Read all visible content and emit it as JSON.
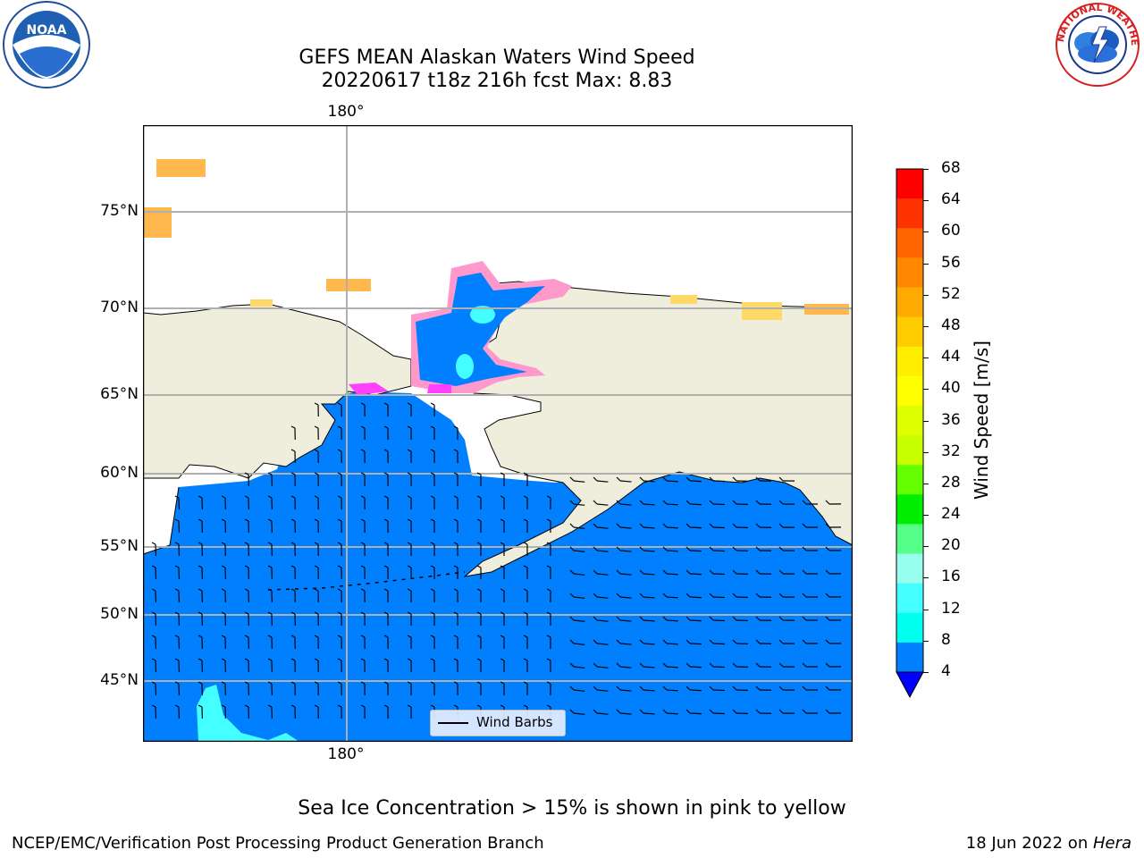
{
  "header": {
    "title_line1": "GEFS MEAN Alaskan Waters Wind Speed",
    "title_line2": "20220617 t18z 216h fcst   Max: 8.83",
    "noaa_logo_text": "NOAA",
    "nws_logo_text": "NATIONAL WEATHER SERVICE"
  },
  "map": {
    "lon_label_top": "180°",
    "lon_label_bottom": "180°",
    "lat_labels": [
      "75°N",
      "70°N",
      "65°N",
      "60°N",
      "55°N",
      "50°N",
      "45°N"
    ],
    "legend_label": "Wind Barbs",
    "ocean_color": "#0080ff",
    "land_color": "#efeedc",
    "ice_colors": [
      "#ff40ff",
      "#ff99cc",
      "#ffb84d",
      "#ffd966"
    ]
  },
  "colorbar": {
    "label": "Wind Speed [m/s]",
    "ticks": [
      "68",
      "64",
      "60",
      "56",
      "52",
      "48",
      "44",
      "40",
      "36",
      "32",
      "28",
      "24",
      "20",
      "16",
      "12",
      "8",
      "4"
    ],
    "colors": [
      "#ff0000",
      "#ff3300",
      "#ff6600",
      "#ff8800",
      "#ffaa00",
      "#ffcc00",
      "#ffee00",
      "#ffff00",
      "#ddff00",
      "#c8ff00",
      "#66ff00",
      "#00ee00",
      "#55ff88",
      "#99ffee",
      "#44ffff",
      "#00ffee",
      "#0080ff"
    ],
    "extend_color": "#0000ff"
  },
  "footer": {
    "note": "Sea Ice Concentration > 15% is shown in pink to yellow",
    "left": "NCEP/EMC/Verification Post Processing Product Generation Branch",
    "right_date": "18 Jun 2022 on ",
    "right_host": "Hera"
  }
}
